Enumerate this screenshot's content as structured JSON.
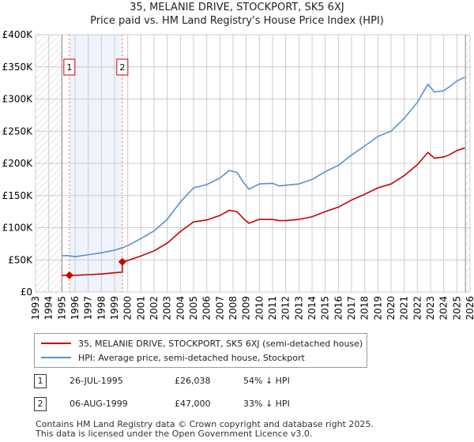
{
  "title": "35, MELANIE DRIVE, STOCKPORT, SK5 6XJ",
  "subtitle": "Price paid vs. HM Land Registry's House Price Index (HPI)",
  "chart_data": {
    "type": "line",
    "xlim": [
      1993,
      2026
    ],
    "ylim": [
      0,
      400000
    ],
    "x_ticks": [
      "1993",
      "1994",
      "1995",
      "1996",
      "1997",
      "1998",
      "1999",
      "2000",
      "2001",
      "2002",
      "2003",
      "2004",
      "2005",
      "2006",
      "2007",
      "2008",
      "2009",
      "2010",
      "2011",
      "2012",
      "2013",
      "2014",
      "2015",
      "2016",
      "2017",
      "2018",
      "2019",
      "2020",
      "2021",
      "2022",
      "2023",
      "2024",
      "2025",
      "2026"
    ],
    "y_ticks": [
      {
        "v": 0,
        "label": "£0"
      },
      {
        "v": 50000,
        "label": "£50K"
      },
      {
        "v": 100000,
        "label": "£100K"
      },
      {
        "v": 150000,
        "label": "£150K"
      },
      {
        "v": 200000,
        "label": "£200K"
      },
      {
        "v": 250000,
        "label": "£250K"
      },
      {
        "v": 300000,
        "label": "£300K"
      },
      {
        "v": 350000,
        "label": "£350K"
      },
      {
        "v": 400000,
        "label": "£400K"
      }
    ],
    "grid": true,
    "hatched_before": 1995,
    "hatched_after": 2025.65,
    "series": [
      {
        "name": "HPI: Average price, semi-detached house, Stockport",
        "color": "#5b8fd0",
        "x": [
          1995,
          1995.5,
          1996,
          1997,
          1998,
          1999,
          1999.6,
          2000,
          2001,
          2002,
          2003,
          2004,
          2005,
          2006,
          2007,
          2007.7,
          2008.3,
          2008.8,
          2009.2,
          2010,
          2011,
          2011.5,
          2012,
          2013,
          2014,
          2015,
          2016,
          2017,
          2018,
          2019,
          2020,
          2021,
          2022,
          2022.8,
          2023.3,
          2024,
          2024.5,
          2025,
          2025.6
        ],
        "y": [
          56500,
          56500,
          55000,
          58000,
          61000,
          65000,
          69000,
          72000,
          83000,
          95000,
          113000,
          140000,
          162000,
          167000,
          177000,
          189000,
          186000,
          170000,
          160000,
          168000,
          169000,
          165000,
          166000,
          168000,
          175000,
          187000,
          197000,
          213000,
          227000,
          242000,
          250000,
          270000,
          295000,
          323000,
          311000,
          313000,
          320000,
          328000,
          334000
        ]
      },
      {
        "name": "35, MELANIE DRIVE, STOCKPORT, SK5 6XJ (semi-detached house)",
        "color": "#cc0000",
        "x": [
          1995,
          1995.57,
          1996,
          1997,
          1998,
          1999,
          1999.59,
          1999.6,
          2000,
          2001,
          2002,
          2003,
          2004,
          2005,
          2006,
          2007,
          2007.7,
          2008.3,
          2008.8,
          2009.2,
          2010,
          2011,
          2011.5,
          2012,
          2013,
          2014,
          2015,
          2016,
          2017,
          2018,
          2019,
          2020,
          2021,
          2022,
          2022.8,
          2023.3,
          2024,
          2024.5,
          2025,
          2025.6
        ],
        "y": [
          26000,
          26038,
          26000,
          27000,
          28000,
          30000,
          31000,
          47000,
          49000,
          56000,
          64000,
          76000,
          94000,
          109000,
          112000,
          119000,
          127000,
          125000,
          114000,
          107000,
          113000,
          113000,
          111000,
          111000,
          113000,
          117000,
          125000,
          132000,
          143000,
          152000,
          162000,
          168000,
          181000,
          198000,
          217000,
          208000,
          210000,
          214000,
          220000,
          224000
        ]
      }
    ],
    "sales": [
      {
        "id": "1",
        "x": 1995.57,
        "y": 26038
      },
      {
        "id": "2",
        "x": 1999.59,
        "y": 47000
      }
    ]
  },
  "legend": [
    {
      "label": "35, MELANIE DRIVE, STOCKPORT, SK5 6XJ (semi-detached house)",
      "color": "#cc0000"
    },
    {
      "label": "HPI: Average price, semi-detached house, Stockport",
      "color": "#5b8fd0"
    }
  ],
  "transactions": [
    {
      "id": "1",
      "date": "26-JUL-1995",
      "price": "£26,038",
      "hpi": "54% ↓ HPI"
    },
    {
      "id": "2",
      "date": "06-AUG-1999",
      "price": "£47,000",
      "hpi": "33% ↓ HPI"
    }
  ],
  "footer": [
    "Contains HM Land Registry data © Crown copyright and database right 2025.",
    "This data is licensed under the Open Government Licence v3.0."
  ]
}
